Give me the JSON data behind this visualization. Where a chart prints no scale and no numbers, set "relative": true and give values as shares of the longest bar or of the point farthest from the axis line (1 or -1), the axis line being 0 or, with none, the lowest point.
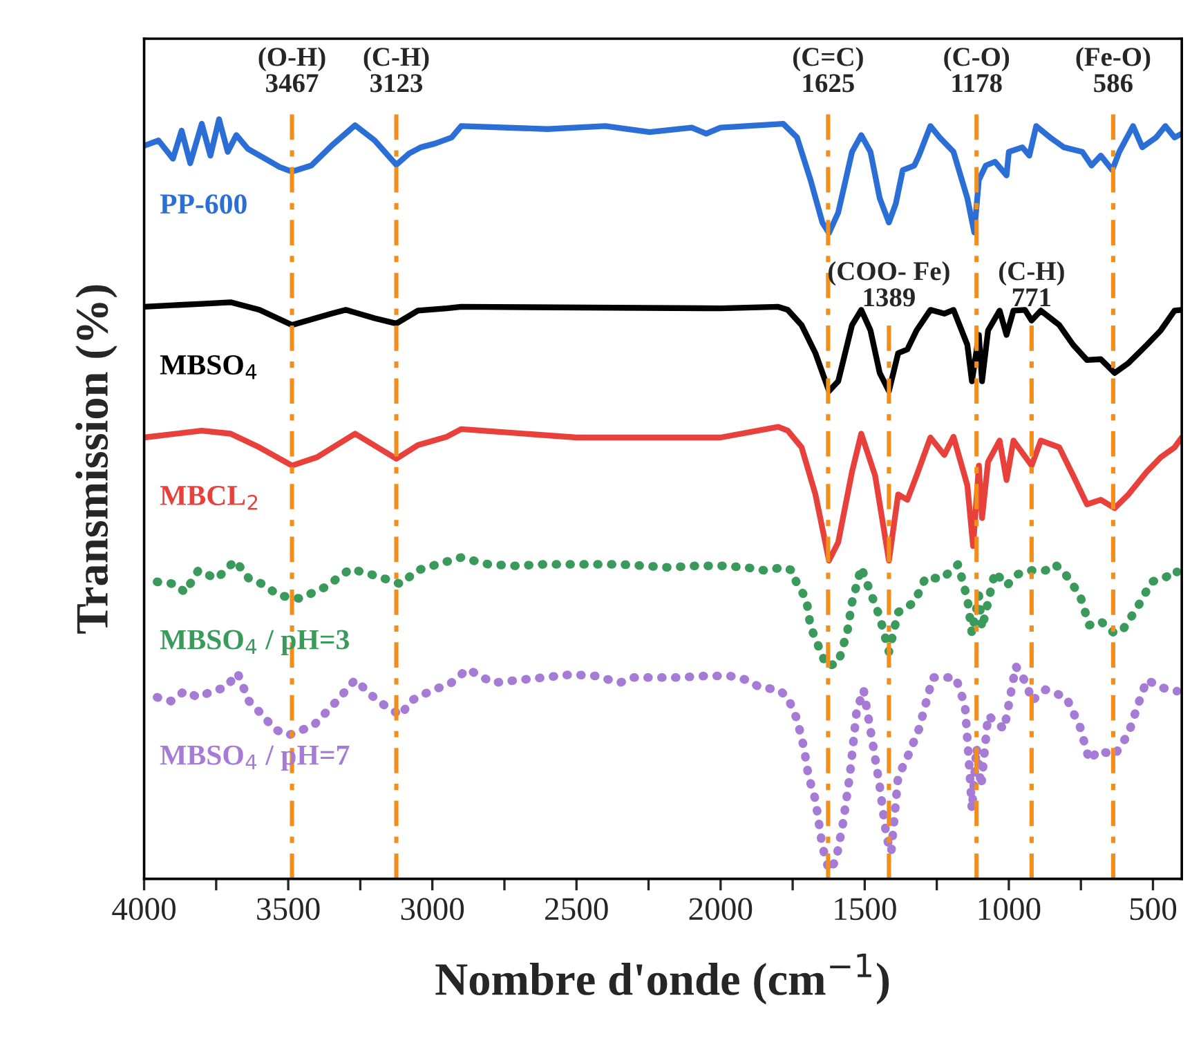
{
  "chart_data": {
    "type": "line",
    "relative": true,
    "xlabel": "Nombre d'onde (cm$^{−1}$)",
    "ylabel": "Transmission (%)",
    "xlim": [
      4000,
      400
    ],
    "xticks": [
      4000,
      {
        "value": 3750,
        "label": null
      },
      3500,
      {
        "value": 3250,
        "label": null
      },
      3000,
      {
        "value": 2750,
        "label": null
      },
      2500,
      {
        "value": 2250,
        "label": null
      },
      2000,
      {
        "value": 1750,
        "label": null
      },
      1500,
      {
        "value": 1250,
        "label": null
      },
      1000,
      {
        "value": 750,
        "label": null
      },
      500
    ],
    "grid": false,
    "legend": false,
    "tick_labels": "x",
    "series": [
      {
        "name": "PP-600",
        "color": "#2b6fd6",
        "line_style": "solid",
        "x": [
          4000,
          3950,
          3900,
          3870,
          3840,
          3800,
          3770,
          3740,
          3710,
          3680,
          3640,
          3580,
          3530,
          3487,
          3420,
          3350,
          3268,
          3200,
          3125,
          3080,
          3040,
          2990,
          2933,
          2900,
          2600,
          2400,
          2246,
          2100,
          2050,
          2000,
          1783,
          1735,
          1688,
          1647,
          1624,
          1592,
          1544,
          1512,
          1480,
          1448,
          1416,
          1392,
          1368,
          1328,
          1312,
          1272,
          1240,
          1192,
          1144,
          1120,
          1104,
          1080,
          1048,
          1008,
          1000,
          953,
          929,
          905,
          857,
          809,
          745,
          713,
          681,
          641,
          617,
          569,
          537,
          489,
          457,
          425,
          400
        ],
        "values": [
          0.965,
          0.972,
          0.948,
          0.985,
          0.942,
          0.994,
          0.952,
          1.0,
          0.957,
          0.979,
          0.961,
          0.948,
          0.937,
          0.931,
          0.939,
          0.965,
          0.992,
          0.972,
          0.94,
          0.955,
          0.963,
          0.968,
          0.976,
          0.991,
          0.987,
          0.991,
          0.983,
          0.989,
          0.981,
          0.989,
          0.994,
          0.976,
          0.92,
          0.864,
          0.85,
          0.877,
          0.957,
          0.979,
          0.957,
          0.896,
          0.864,
          0.889,
          0.933,
          0.939,
          0.952,
          0.991,
          0.976,
          0.957,
          0.896,
          0.851,
          0.92,
          0.939,
          0.944,
          0.926,
          0.957,
          0.963,
          0.952,
          0.991,
          0.976,
          0.963,
          0.957,
          0.939,
          0.952,
          0.933,
          0.957,
          0.991,
          0.963,
          0.976,
          0.991,
          0.976,
          0.981
        ]
      },
      {
        "name": "MBSO$_{4}$",
        "color": "#000000",
        "line_style": "solid",
        "x": [
          4000,
          3800,
          3700,
          3600,
          3487,
          3350,
          3300,
          3200,
          3125,
          3050,
          2950,
          2900,
          2000,
          1800,
          1767,
          1719,
          1671,
          1624,
          1592,
          1544,
          1512,
          1480,
          1448,
          1416,
          1384,
          1352,
          1320,
          1272,
          1224,
          1192,
          1144,
          1128,
          1104,
          1093,
          1072,
          1032,
          1008,
          984,
          944,
          921,
          889,
          825,
          777,
          729,
          681,
          633,
          585,
          521,
          473,
          425,
          400
        ],
        "values": [
          0.753,
          0.757,
          0.759,
          0.749,
          0.729,
          0.744,
          0.749,
          0.738,
          0.731,
          0.748,
          0.751,
          0.753,
          0.751,
          0.753,
          0.749,
          0.729,
          0.692,
          0.642,
          0.655,
          0.729,
          0.749,
          0.722,
          0.666,
          0.642,
          0.692,
          0.697,
          0.722,
          0.749,
          0.744,
          0.749,
          0.703,
          0.655,
          0.716,
          0.655,
          0.722,
          0.748,
          0.716,
          0.748,
          0.749,
          0.735,
          0.748,
          0.729,
          0.703,
          0.683,
          0.684,
          0.666,
          0.679,
          0.703,
          0.722,
          0.748,
          0.749
        ]
      },
      {
        "name": "MBCL$_{2}$",
        "color": "#e8413c",
        "line_style": "solid",
        "x": [
          4000,
          3800,
          3700,
          3600,
          3487,
          3400,
          3268,
          3125,
          3050,
          2950,
          2900,
          2500,
          2000,
          1800,
          1767,
          1719,
          1671,
          1624,
          1592,
          1544,
          1512,
          1464,
          1416,
          1384,
          1352,
          1320,
          1272,
          1224,
          1192,
          1144,
          1124,
          1104,
          1093,
          1072,
          1032,
          1008,
          984,
          921,
          889,
          825,
          777,
          729,
          681,
          633,
          585,
          521,
          473,
          425,
          400
        ],
        "values": [
          0.581,
          0.59,
          0.586,
          0.568,
          0.544,
          0.555,
          0.586,
          0.553,
          0.571,
          0.582,
          0.592,
          0.581,
          0.581,
          0.595,
          0.59,
          0.568,
          0.506,
          0.419,
          0.443,
          0.536,
          0.586,
          0.531,
          0.419,
          0.506,
          0.499,
          0.531,
          0.581,
          0.558,
          0.582,
          0.518,
          0.438,
          0.544,
          0.475,
          0.549,
          0.577,
          0.525,
          0.577,
          0.544,
          0.577,
          0.568,
          0.531,
          0.493,
          0.499,
          0.488,
          0.506,
          0.536,
          0.555,
          0.568,
          0.581
        ]
      },
      {
        "name": "MBSO$_{4}$ / pH=3",
        "color": "#3a9a5c",
        "line_style": "dotted",
        "x": [
          3955,
          3891,
          3858,
          3812,
          3748,
          3684,
          3636,
          3589,
          3532,
          3460,
          3372,
          3284,
          3196,
          3109,
          3053,
          2965,
          2901,
          2805,
          2710,
          2614,
          2526,
          2430,
          2351,
          2262,
          2183,
          2087,
          1991,
          1911,
          1847,
          1783,
          1751,
          1735,
          1703,
          1688,
          1656,
          1632,
          1592,
          1560,
          1544,
          1512,
          1480,
          1448,
          1416,
          1384,
          1328,
          1288,
          1232,
          1176,
          1144,
          1128,
          1104,
          1093,
          1048,
          1008,
          968,
          921,
          873,
          841,
          809,
          753,
          721,
          681,
          633,
          601,
          553,
          505,
          457,
          417
        ],
        "values": [
          0.391,
          0.388,
          0.377,
          0.406,
          0.395,
          0.419,
          0.395,
          0.388,
          0.373,
          0.369,
          0.384,
          0.408,
          0.399,
          0.388,
          0.406,
          0.416,
          0.423,
          0.414,
          0.412,
          0.414,
          0.414,
          0.414,
          0.414,
          0.412,
          0.41,
          0.412,
          0.412,
          0.41,
          0.406,
          0.41,
          0.406,
          0.388,
          0.369,
          0.332,
          0.302,
          0.28,
          0.284,
          0.326,
          0.364,
          0.41,
          0.377,
          0.345,
          0.299,
          0.351,
          0.364,
          0.397,
          0.395,
          0.414,
          0.369,
          0.323,
          0.373,
          0.33,
          0.404,
          0.386,
          0.401,
          0.406,
          0.406,
          0.414,
          0.404,
          0.373,
          0.334,
          0.339,
          0.323,
          0.33,
          0.358,
          0.391,
          0.397,
          0.404
        ]
      },
      {
        "name": "MBSO$_{4}$ / pH=7",
        "color": "#a57bd6",
        "line_style": "dotted",
        "x": [
          3955,
          3907,
          3860,
          3812,
          3764,
          3716,
          3676,
          3636,
          3588,
          3548,
          3500,
          3412,
          3332,
          3268,
          3189,
          3109,
          3077,
          2997,
          2941,
          2878,
          2789,
          2694,
          2614,
          2518,
          2430,
          2351,
          2303,
          2222,
          2151,
          2055,
          1967,
          1911,
          1863,
          1799,
          1767,
          1735,
          1711,
          1695,
          1671,
          1647,
          1624,
          1600,
          1576,
          1552,
          1528,
          1504,
          1472,
          1448,
          1424,
          1408,
          1384,
          1352,
          1312,
          1264,
          1184,
          1152,
          1136,
          1128,
          1112,
          1096,
          1072,
          1016,
          976,
          937,
          921,
          873,
          801,
          753,
          721,
          689,
          633,
          585,
          553,
          521,
          473,
          417
        ],
        "values": [
          0.239,
          0.234,
          0.247,
          0.239,
          0.247,
          0.252,
          0.271,
          0.234,
          0.215,
          0.197,
          0.189,
          0.202,
          0.234,
          0.262,
          0.234,
          0.215,
          0.234,
          0.249,
          0.256,
          0.276,
          0.258,
          0.262,
          0.265,
          0.269,
          0.267,
          0.258,
          0.265,
          0.265,
          0.265,
          0.267,
          0.267,
          0.262,
          0.252,
          0.249,
          0.239,
          0.21,
          0.173,
          0.135,
          0.104,
          0.043,
          0.011,
          0.024,
          0.072,
          0.135,
          0.221,
          0.249,
          0.178,
          0.122,
          0.054,
          0.035,
          0.135,
          0.16,
          0.197,
          0.265,
          0.265,
          0.228,
          0.141,
          0.091,
          0.173,
          0.122,
          0.215,
          0.197,
          0.28,
          0.256,
          0.234,
          0.249,
          0.239,
          0.2,
          0.156,
          0.169,
          0.163,
          0.191,
          0.228,
          0.262,
          0.252,
          0.247
        ]
      }
    ],
    "ref_lines": [
      {
        "axis": "x",
        "value": 3487,
        "label": "(O-H)\n3467",
        "color": "#f28e1c",
        "line_style": "dashdot"
      },
      {
        "axis": "x",
        "value": 3125,
        "label": "(C-H)\n3123",
        "color": "#f28e1c",
        "line_style": "dashdot"
      },
      {
        "axis": "x",
        "value": 1627,
        "label": "(C=C)\n1625",
        "color": "#f28e1c",
        "line_style": "dashdot"
      },
      {
        "axis": "x",
        "value": 1416,
        "label": "(COO- Fe)\n1389",
        "color": "#f28e1c",
        "line_style": "dashdot"
      },
      {
        "axis": "x",
        "value": 1112,
        "label": "(C-O)\n1178",
        "color": "#f28e1c",
        "line_style": "dashdot"
      },
      {
        "axis": "x",
        "value": 921,
        "label": "(C-H)\n771",
        "color": "#f28e1c",
        "line_style": "dashdot"
      },
      {
        "axis": "x",
        "value": 638,
        "label": "(Fe-O)\n586",
        "color": "#f28e1c",
        "line_style": "dashdot"
      }
    ]
  }
}
